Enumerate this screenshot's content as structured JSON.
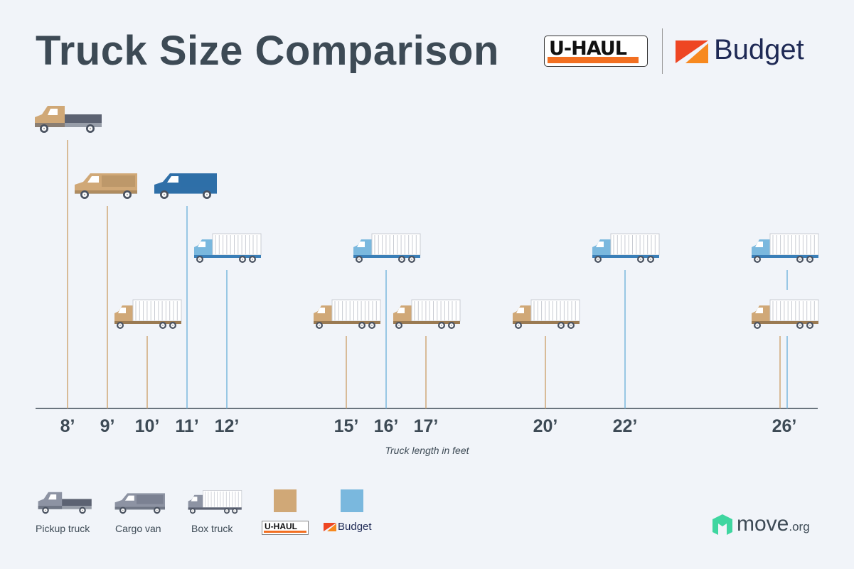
{
  "title": "Truck Size Comparison",
  "logos": {
    "uhaul": "U-HAUL",
    "budget": "Budget",
    "move": "move",
    "move_suffix": ".org"
  },
  "colors": {
    "uhaul": "#d0a877",
    "budget": "#7ab8de",
    "budget_dark": "#2f6fa8",
    "gray": "#8d93a3",
    "dark": "#3d4a55"
  },
  "chart_data": {
    "type": "timeline",
    "xlabel": "Truck length in feet",
    "ticks": [
      "8’",
      "9’",
      "10’",
      "11’",
      "12’",
      "15’",
      "16’",
      "17’",
      "20’",
      "22’",
      "26’"
    ],
    "tick_values": [
      8,
      9,
      10,
      11,
      12,
      15,
      16,
      17,
      20,
      22,
      26
    ],
    "items": [
      {
        "length": 8,
        "brand": "U-Haul",
        "type": "Pickup truck"
      },
      {
        "length": 9,
        "brand": "U-Haul",
        "type": "Cargo van"
      },
      {
        "length": 10,
        "brand": "U-Haul",
        "type": "Box truck"
      },
      {
        "length": 11,
        "brand": "Budget",
        "type": "Cargo van"
      },
      {
        "length": 12,
        "brand": "Budget",
        "type": "Box truck"
      },
      {
        "length": 15,
        "brand": "U-Haul",
        "type": "Box truck"
      },
      {
        "length": 16,
        "brand": "Budget",
        "type": "Box truck"
      },
      {
        "length": 17,
        "brand": "U-Haul",
        "type": "Box truck"
      },
      {
        "length": 20,
        "brand": "U-Haul",
        "type": "Box truck"
      },
      {
        "length": 22,
        "brand": "Budget",
        "type": "Box truck"
      },
      {
        "length": 26,
        "brand": "U-Haul",
        "type": "Box truck"
      },
      {
        "length": 26,
        "brand": "Budget",
        "type": "Box truck"
      }
    ]
  },
  "legend": {
    "types": [
      "Pickup truck",
      "Cargo van",
      "Box truck"
    ],
    "brands": [
      "U-HAUL",
      "Budget"
    ]
  }
}
